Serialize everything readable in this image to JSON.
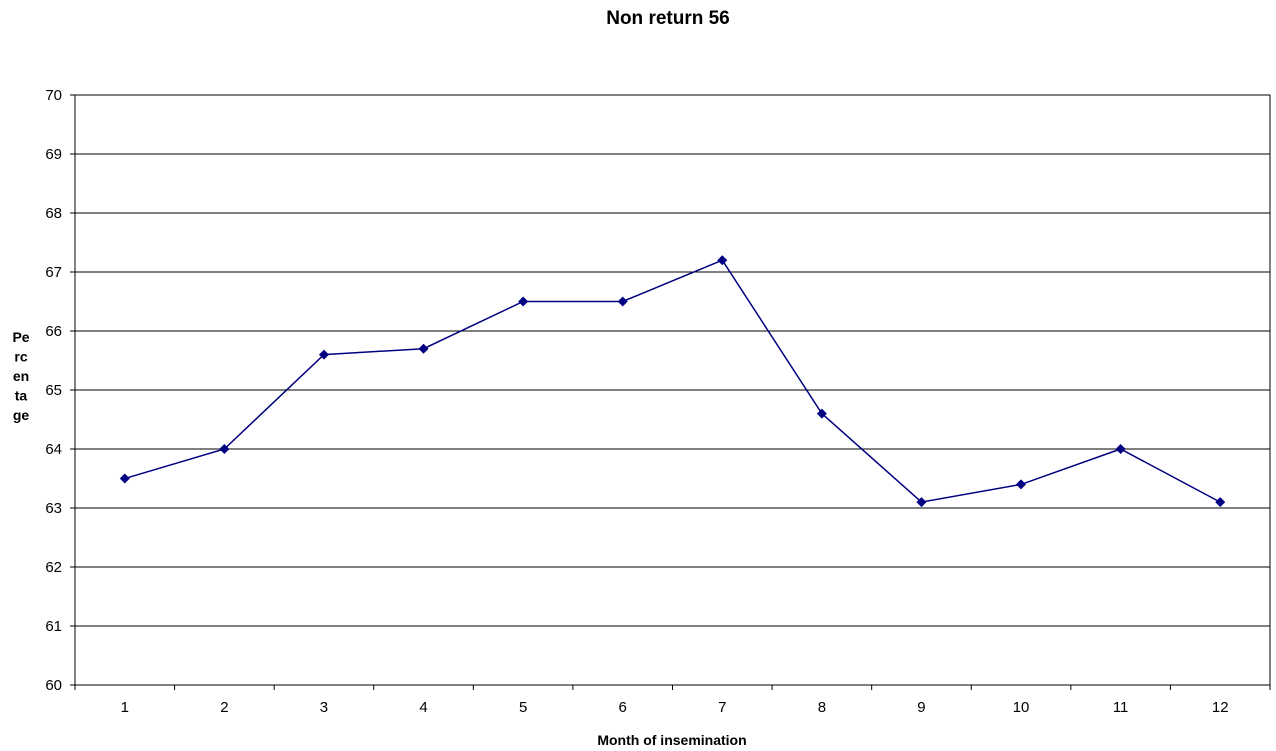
{
  "chart_data": {
    "type": "line",
    "title": "Non return 56",
    "xlabel": "Month of insemination",
    "ylabel_lines": [
      "Pe",
      "rc",
      "en",
      "ta",
      "ge"
    ],
    "categories": [
      "1",
      "2",
      "3",
      "4",
      "5",
      "6",
      "7",
      "8",
      "9",
      "10",
      "11",
      "12"
    ],
    "series": [
      {
        "values": [
          63.5,
          64.0,
          65.6,
          65.7,
          66.5,
          66.5,
          67.2,
          64.6,
          63.1,
          63.4,
          64.0,
          63.1
        ]
      }
    ],
    "ylim": [
      60,
      70
    ],
    "yticks": [
      "60",
      "61",
      "62",
      "63",
      "64",
      "65",
      "66",
      "67",
      "68",
      "69",
      "70"
    ],
    "grid": true,
    "legend": "none",
    "colors": {
      "line": "#000080",
      "marker": "#000080",
      "grid": "#000000"
    }
  }
}
